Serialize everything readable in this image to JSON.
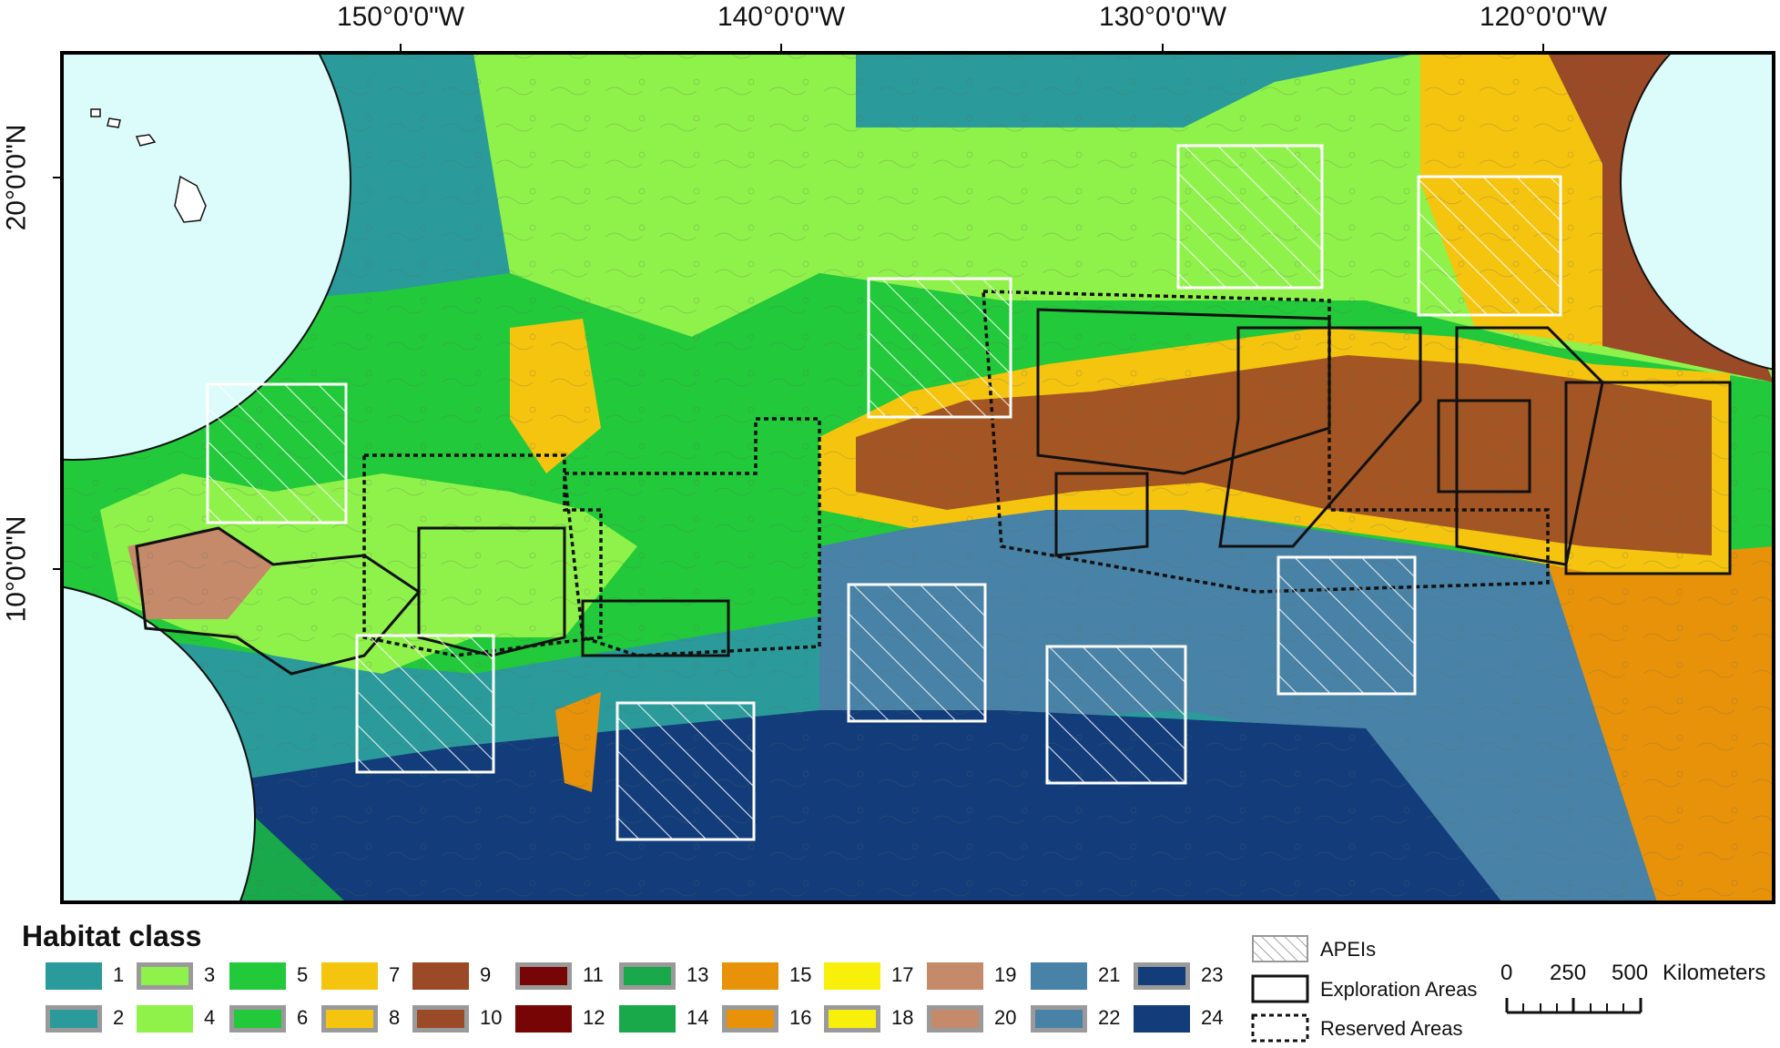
{
  "map": {
    "longitude_labels": [
      "150°0'0\"W",
      "140°0'0\"W",
      "130°0'0\"W",
      "120°0'0\"W"
    ],
    "latitude_labels": [
      "20°0'0\"N",
      "10°0'0\"N"
    ]
  },
  "legend": {
    "title": "Habitat class",
    "habitat_classes": [
      {
        "num": "1",
        "color": "#2b9a9a",
        "outlined": false
      },
      {
        "num": "2",
        "color": "#2b9a9a",
        "outlined": true
      },
      {
        "num": "3",
        "color": "#8ff24a",
        "outlined": true
      },
      {
        "num": "4",
        "color": "#8ff24a",
        "outlined": false
      },
      {
        "num": "5",
        "color": "#22c93a",
        "outlined": false
      },
      {
        "num": "6",
        "color": "#22c93a",
        "outlined": true
      },
      {
        "num": "7",
        "color": "#f5c40f",
        "outlined": false
      },
      {
        "num": "8",
        "color": "#f5c40f",
        "outlined": true
      },
      {
        "num": "9",
        "color": "#9a4a26",
        "outlined": false
      },
      {
        "num": "10",
        "color": "#9a4a26",
        "outlined": true
      },
      {
        "num": "11",
        "color": "#780505",
        "outlined": true
      },
      {
        "num": "12",
        "color": "#780505",
        "outlined": false
      },
      {
        "num": "13",
        "color": "#19a84a",
        "outlined": true
      },
      {
        "num": "14",
        "color": "#19a84a",
        "outlined": false
      },
      {
        "num": "15",
        "color": "#e8920a",
        "outlined": false
      },
      {
        "num": "16",
        "color": "#e8920a",
        "outlined": true
      },
      {
        "num": "17",
        "color": "#f8f00a",
        "outlined": false
      },
      {
        "num": "18",
        "color": "#f8f00a",
        "outlined": true
      },
      {
        "num": "19",
        "color": "#c48a6a",
        "outlined": false
      },
      {
        "num": "20",
        "color": "#c48a6a",
        "outlined": true
      },
      {
        "num": "21",
        "color": "#4882a6",
        "outlined": false
      },
      {
        "num": "22",
        "color": "#4882a6",
        "outlined": true
      },
      {
        "num": "23",
        "color": "#123c7a",
        "outlined": true
      },
      {
        "num": "24",
        "color": "#123c7a",
        "outlined": false
      }
    ],
    "features": {
      "apeis": "APEIs",
      "exploration": "Exploration Areas",
      "reserved": "Reserved Areas"
    },
    "scale": {
      "ticks": [
        "0",
        "250",
        "500"
      ],
      "unit": "Kilometers"
    }
  }
}
